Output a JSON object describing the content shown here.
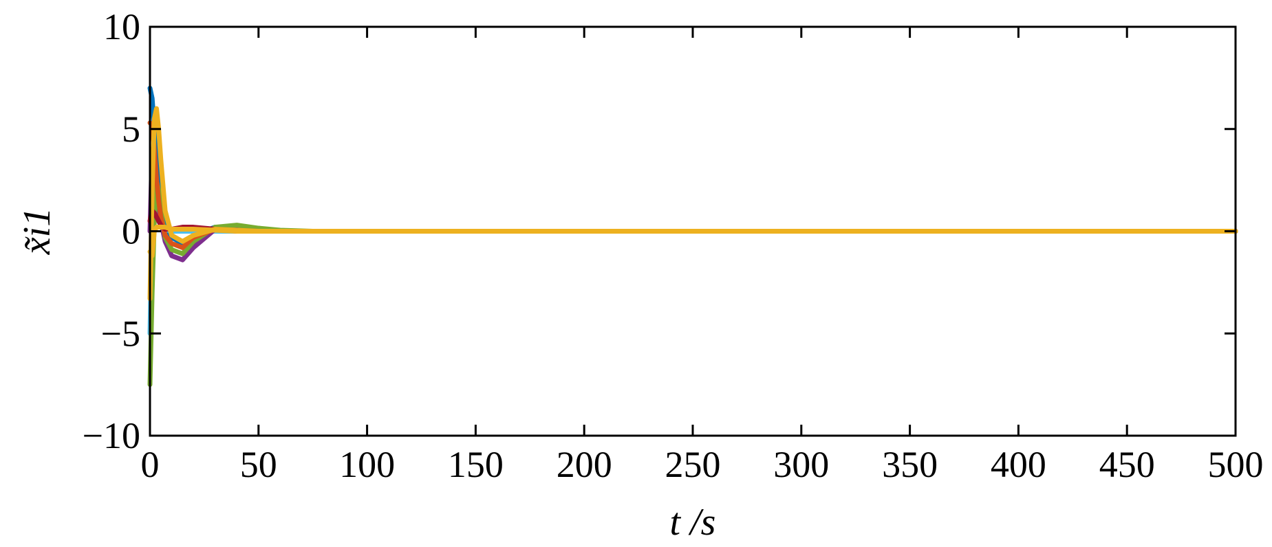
{
  "chart_data": {
    "type": "line",
    "xlabel": "t /s",
    "ylabel": "x̃i1",
    "x": [
      0,
      1,
      2,
      3,
      4,
      5,
      7,
      10,
      15,
      20,
      30,
      40,
      50,
      60,
      75,
      100,
      500
    ],
    "series": [
      {
        "color": "#0072BD",
        "values": [
          7,
          6.5,
          5,
          3.5,
          2.2,
          1.2,
          0.3,
          -0.3,
          -0.6,
          -0.2,
          0.2,
          0.1,
          0,
          0,
          0,
          0,
          0
        ]
      },
      {
        "color": "#4DBEEE",
        "values": [
          -5,
          0.5,
          1,
          0.8,
          0.5,
          0.3,
          0.1,
          0,
          0,
          0,
          0,
          0,
          0,
          0,
          0,
          0,
          0
        ]
      },
      {
        "color": "#7E2F8E",
        "values": [
          0,
          4,
          3,
          2,
          1.2,
          0.5,
          -0.5,
          -1.2,
          -1.4,
          -0.8,
          0.1,
          0.1,
          0,
          0,
          0,
          0,
          0
        ]
      },
      {
        "color": "#77AC30",
        "values": [
          -7.5,
          -3,
          0.5,
          2.5,
          2,
          1,
          -0.3,
          -0.9,
          -1.1,
          -0.5,
          0.2,
          0.3,
          0.15,
          0.05,
          0,
          0,
          0
        ]
      },
      {
        "color": "#D95319",
        "values": [
          5.3,
          5.2,
          4,
          2.6,
          1.5,
          0.7,
          -0.2,
          -0.6,
          -0.8,
          -0.3,
          0.1,
          0.05,
          0,
          0,
          0,
          0,
          0
        ]
      },
      {
        "color": "#A2142F",
        "values": [
          0.5,
          1,
          0.9,
          0.7,
          0.5,
          0.3,
          0.1,
          0.1,
          0.2,
          0.2,
          0.1,
          0,
          0,
          0,
          0,
          0,
          0
        ]
      },
      {
        "color": "#EDB120",
        "values": [
          -3.3,
          2,
          5.5,
          6,
          5,
          3.5,
          1,
          -0.2,
          -0.5,
          -0.2,
          0.1,
          0.05,
          0,
          0,
          0,
          0,
          0
        ]
      },
      {
        "color": "#EDB120",
        "values": [
          -1,
          -1.2,
          0,
          0.2,
          0.2,
          0.2,
          0.2,
          0.1,
          0.1,
          0.1,
          0.05,
          0,
          0,
          0,
          0,
          0,
          0
        ]
      }
    ],
    "xlim": [
      0,
      500
    ],
    "xticks": [
      0,
      50,
      100,
      150,
      200,
      250,
      300,
      350,
      400,
      450,
      500
    ],
    "ylim": [
      -10,
      10
    ],
    "yticks": [
      {
        "value": -10,
        "label": "−10"
      },
      {
        "value": -5,
        "label": "−5"
      },
      0,
      5,
      10
    ],
    "grid": false
  }
}
